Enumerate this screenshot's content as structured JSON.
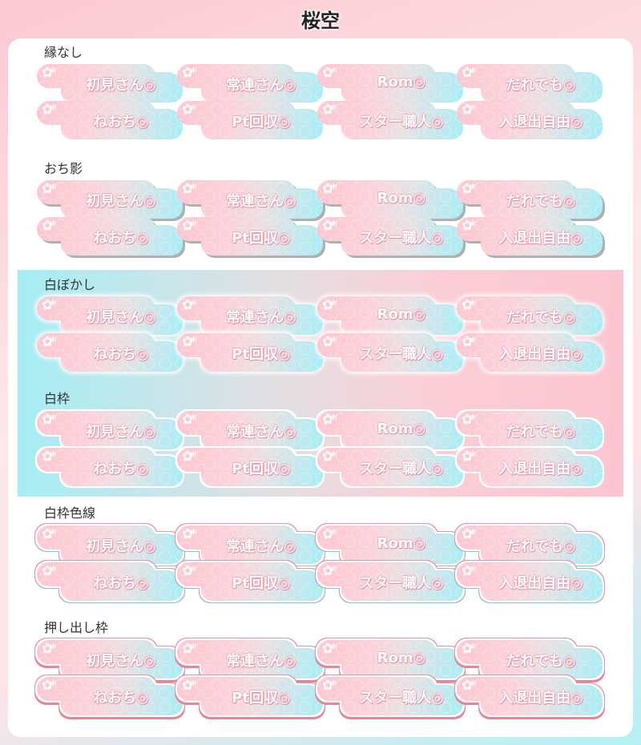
{
  "title": "桜空",
  "buttons": [
    "初見さん◎",
    "常連さん◎",
    "Rom◎",
    "だれでも◎",
    "ねおち◎",
    "Pt回収◎",
    "スター職人◎",
    "入退出自由◎"
  ],
  "flower_icon": "✿*",
  "sections": [
    {
      "label": "縁なし",
      "style": "s1"
    },
    {
      "label": "おち影",
      "style": "s2"
    },
    {
      "label": "白ぼかし",
      "style": "s3"
    },
    {
      "label": "白枠",
      "style": "s4"
    },
    {
      "label": "白枠色線",
      "style": "s5"
    },
    {
      "label": "押し出し枠",
      "style": "s6"
    }
  ],
  "colors": {
    "pink": "#fcc6d0",
    "cyan": "#a7eef6",
    "text_outline": "#e58fa3"
  }
}
